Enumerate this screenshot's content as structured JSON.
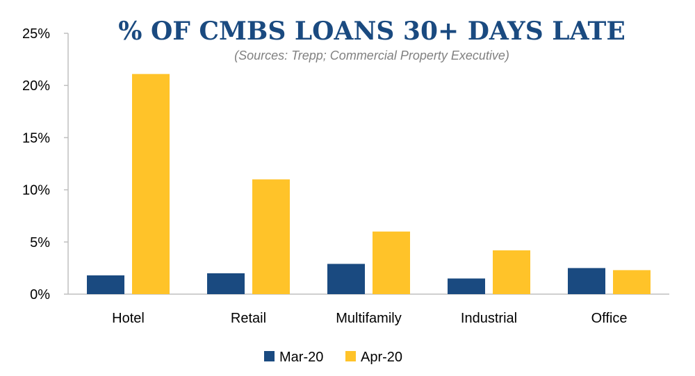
{
  "colors": {
    "mar": "#1a4a80",
    "apr": "#ffc329",
    "title": "#1a4a80",
    "subtitle": "#808080",
    "axis": "#bfbfbf",
    "text": "#000000"
  },
  "chart_data": {
    "type": "bar",
    "title": "% OF CMBS LOANS 30+ DAYS LATE",
    "subtitle": "(Sources: Trepp; Commercial Property Executive)",
    "xlabel": "",
    "ylabel": "",
    "categories": [
      "Hotel",
      "Retail",
      "Multifamily",
      "Industrial",
      "Office"
    ],
    "series": [
      {
        "name": "Mar-20",
        "values": [
          1.8,
          2.0,
          2.9,
          1.5,
          2.5
        ]
      },
      {
        "name": "Apr-20",
        "values": [
          21.1,
          11.0,
          6.0,
          4.2,
          2.3
        ]
      }
    ],
    "ylim": [
      0,
      25
    ],
    "yticks": [
      0,
      5,
      10,
      15,
      20,
      25
    ],
    "ytick_labels": [
      "0%",
      "5%",
      "10%",
      "15%",
      "20%",
      "25%"
    ],
    "grid": false,
    "legend_position": "bottom"
  }
}
